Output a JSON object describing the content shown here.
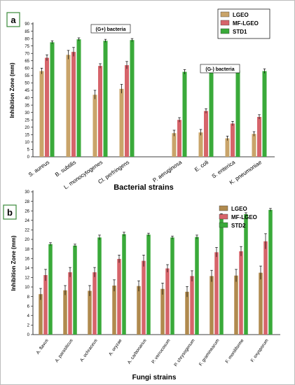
{
  "chart_data": [
    {
      "type": "bar",
      "panel_label": "a",
      "ylabel": "Inhibition Zone (mm)",
      "xlabel": "Bacterial strains",
      "ylim": [
        0,
        90
      ],
      "ytick_step": 5,
      "legend_position": "top-right",
      "categories": [
        "S. aureus",
        "B. subtilis",
        "L. monocytogenes",
        "Cl. perfringens",
        "P. aeruginosa",
        "E. coli",
        "S. enterica",
        "K. pneumoniae"
      ],
      "annotations": [
        "(G+) bacteria",
        "(G-) bacteria"
      ],
      "series": [
        {
          "name": "LGEO",
          "values": [
            58,
            69,
            42,
            46,
            16,
            16.5,
            12.5,
            15.5
          ],
          "errors": [
            2,
            3,
            3,
            3,
            2,
            2,
            1.5,
            1.5
          ],
          "color": "#c9a46a"
        },
        {
          "name": "MF-LGEO",
          "values": [
            67,
            71,
            61.5,
            62,
            25,
            31,
            22.5,
            27
          ],
          "errors": [
            2,
            3,
            1.5,
            2.5,
            1.5,
            1.5,
            1.5,
            1.5
          ],
          "color": "#d6646a"
        },
        {
          "name": "STD1",
          "values": [
            77.5,
            79.5,
            78.5,
            79,
            57.5,
            59.5,
            58.5,
            58
          ],
          "errors": [
            1,
            1,
            1,
            1,
            1.5,
            1.5,
            1.5,
            1.5
          ],
          "color": "#3aaa3a"
        }
      ]
    },
    {
      "type": "bar",
      "panel_label": "b",
      "ylabel": "Inhibition Zone (mm)",
      "xlabel": "Fungi strains",
      "ylim": [
        0,
        30
      ],
      "ytick_step": 2,
      "legend_position": "top-right",
      "categories": [
        "A. flavus",
        "A. parasiticus",
        "A. ochraceus",
        "A. oryzae",
        "A. carbonarius",
        "P. verrucosum",
        "P. chrysogenum",
        "F. graminearum",
        "F. moniliforme",
        "F. oxysporum"
      ],
      "series": [
        {
          "name": "LGEO",
          "values": [
            8.5,
            9.3,
            9.2,
            10.3,
            10.2,
            9.6,
            9,
            12.3,
            12.4,
            13
          ],
          "errors": [
            1.2,
            1,
            1.1,
            1.2,
            1.1,
            1.2,
            1.1,
            1.2,
            1.3,
            1.4
          ],
          "color": "#b08a4e"
        },
        {
          "name": "MF-LGEO",
          "values": [
            12.5,
            13.1,
            13.1,
            15.9,
            15.5,
            13.9,
            12.3,
            17.3,
            17.5,
            19.6
          ],
          "errors": [
            1.2,
            1,
            1,
            0.8,
            1.2,
            0.8,
            1.1,
            1,
            1,
            1.6
          ],
          "color": "#d6646a"
        },
        {
          "name": "STD2",
          "values": [
            19,
            18.7,
            20.4,
            21.1,
            21,
            20.4,
            20.5,
            25.1,
            25.3,
            26.2
          ],
          "errors": [
            0.3,
            0.3,
            0.5,
            0.4,
            0.3,
            0.3,
            0.4,
            0.3,
            0.3,
            0.3
          ],
          "color": "#3aaa3a"
        }
      ]
    }
  ]
}
